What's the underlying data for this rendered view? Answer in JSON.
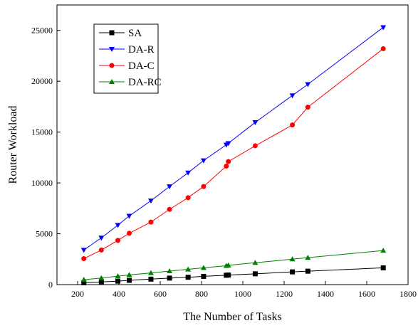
{
  "chart_data": {
    "type": "line",
    "xlabel": "The Number of Tasks",
    "ylabel": "Router Workload",
    "xlim": [
      100,
      1800
    ],
    "ylim": [
      0,
      27500
    ],
    "xticks": [
      200,
      400,
      600,
      800,
      1000,
      1200,
      1400,
      1600,
      1800
    ],
    "yticks": [
      0,
      5000,
      10000,
      15000,
      20000,
      25000
    ],
    "grid": false,
    "legend_position": "top-left",
    "series": [
      {
        "name": "SA",
        "color": "#000000",
        "marker": "square",
        "x": [
          230,
          315,
          395,
          450,
          555,
          645,
          735,
          810,
          920,
          930,
          1060,
          1240,
          1315,
          1680
        ],
        "y": [
          180,
          260,
          340,
          420,
          540,
          640,
          720,
          810,
          920,
          940,
          1060,
          1250,
          1320,
          1650
        ]
      },
      {
        "name": "DA-R",
        "color": "#0000ff",
        "marker": "triangle-down",
        "x": [
          230,
          315,
          395,
          450,
          555,
          645,
          735,
          810,
          920,
          930,
          1060,
          1240,
          1315,
          1680
        ],
        "y": [
          3400,
          4600,
          5850,
          6750,
          8250,
          9650,
          11000,
          12200,
          13750,
          13900,
          15950,
          18600,
          19700,
          25300
        ]
      },
      {
        "name": "DA-C",
        "color": "#ff0000",
        "marker": "circle",
        "x": [
          230,
          315,
          395,
          450,
          555,
          645,
          735,
          810,
          920,
          930,
          1060,
          1240,
          1315,
          1680
        ],
        "y": [
          2550,
          3400,
          4350,
          5050,
          6150,
          7400,
          8550,
          9650,
          11650,
          12100,
          13650,
          15700,
          17450,
          23200
        ]
      },
      {
        "name": "DA-RC",
        "color": "#008000",
        "marker": "triangle-up",
        "x": [
          230,
          315,
          395,
          450,
          555,
          645,
          735,
          810,
          920,
          930,
          1060,
          1240,
          1315,
          1680
        ],
        "y": [
          480,
          650,
          830,
          950,
          1150,
          1330,
          1500,
          1650,
          1850,
          1900,
          2150,
          2500,
          2650,
          3350
        ]
      }
    ]
  }
}
